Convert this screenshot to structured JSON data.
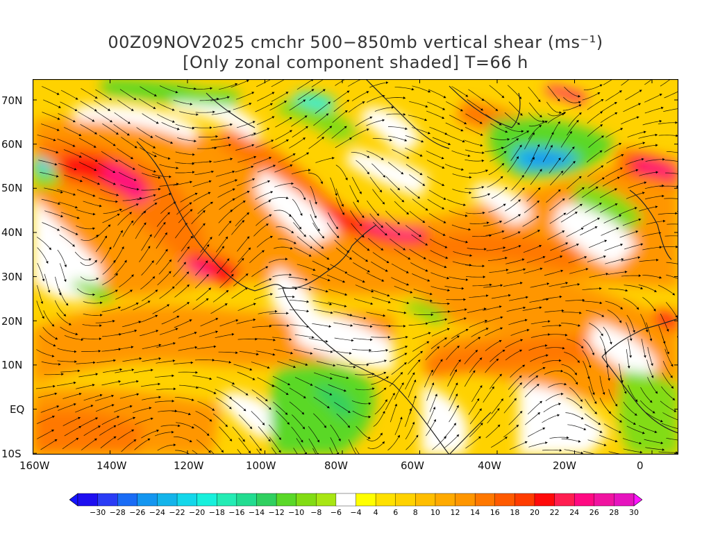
{
  "title": {
    "line1": "00Z09NOV2025 cmchr 500−850mb vertical shear (ms⁻¹)",
    "line2": "[Only zonal component shaded] T=66 h"
  },
  "map": {
    "lat_axis": [
      "70N",
      "60N",
      "50N",
      "40N",
      "30N",
      "20N",
      "10N",
      "EQ",
      "10S"
    ],
    "lon_axis": [
      "160W",
      "140W",
      "120W",
      "100W",
      "80W",
      "60W",
      "40W",
      "20W",
      "0"
    ]
  },
  "colorbar": {
    "labels": [
      "−30",
      "−28",
      "−26",
      "−24",
      "−22",
      "−20",
      "−18",
      "−16",
      "−14",
      "−12",
      "−10",
      "−8",
      "−6",
      "−4",
      "4",
      "6",
      "8",
      "10",
      "12",
      "14",
      "16",
      "18",
      "20",
      "22",
      "24",
      "26",
      "28",
      "30"
    ],
    "colors": [
      "#1e0ff0",
      "#2a3cf5",
      "#1a6cf5",
      "#1496f0",
      "#14b4ea",
      "#14d7ea",
      "#18f0dc",
      "#24ecb4",
      "#22dc90",
      "#30d060",
      "#5ad828",
      "#82dc14",
      "#a8e614",
      "#ffffff",
      "#ffff00",
      "#ffe100",
      "#ffd200",
      "#ffbe00",
      "#ffaa00",
      "#ff9600",
      "#ff7800",
      "#ff5a00",
      "#ff3c00",
      "#ff0a0a",
      "#ff1e50",
      "#ff0a82",
      "#f014a0",
      "#e614be"
    ]
  },
  "colors": {
    "land_outline": "#222222",
    "streamline": "#000000"
  }
}
